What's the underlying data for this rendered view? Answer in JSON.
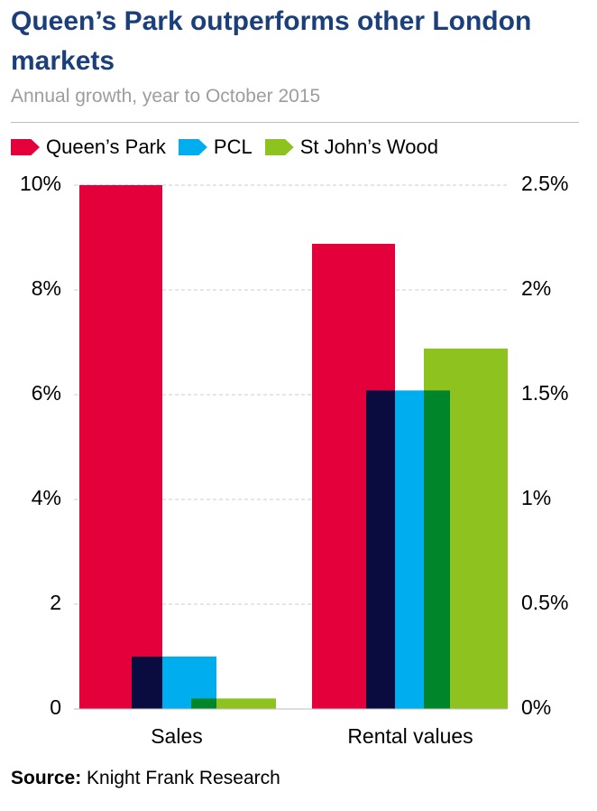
{
  "title": "Queen’s Park outperforms other London markets",
  "subtitle": "Annual growth, year to October 2015",
  "source": {
    "label": "Source:",
    "text": "Knight Frank Research"
  },
  "colors": {
    "queens_park": "#e4003b",
    "pcl": "#00aeef",
    "st_johns_wood": "#8dc21f",
    "overlap_qp_pcl": "#0a0b3e",
    "overlap_pcl_sjw": "#00862a",
    "title": "#1b3f7a",
    "subtitle": "#9d9d9d",
    "grid": "#d8d8d8"
  },
  "chart_data": {
    "type": "bar",
    "title": "Queen’s Park outperforms other London markets",
    "subtitle": "Annual growth, year to October 2015",
    "categories": [
      "Sales",
      "Rental values"
    ],
    "series": [
      {
        "name": "Queen’s Park",
        "values": [
          10,
          2.22
        ]
      },
      {
        "name": "PCL",
        "values": [
          1,
          1.52
        ]
      },
      {
        "name": "St John’s Wood",
        "values": [
          0.2,
          1.72
        ]
      }
    ],
    "axes": {
      "left": {
        "applies_to": "Sales",
        "ylim": [
          0,
          10
        ],
        "ticks": [
          0,
          2,
          4,
          6,
          8,
          10
        ],
        "tick_labels": [
          "0",
          "2",
          "4%",
          "6%",
          "8%",
          "10%"
        ]
      },
      "right": {
        "applies_to": "Rental values",
        "ylim": [
          0,
          2.5
        ],
        "ticks": [
          0,
          0.5,
          1,
          1.5,
          2,
          2.5
        ],
        "tick_labels": [
          "0%",
          "0.5%",
          "1%",
          "1.5%",
          "2%",
          "2.5%"
        ]
      }
    },
    "grid": true,
    "gridlines": "dashed horizontal",
    "legend_position": "top-left",
    "bars_overlap": true
  }
}
